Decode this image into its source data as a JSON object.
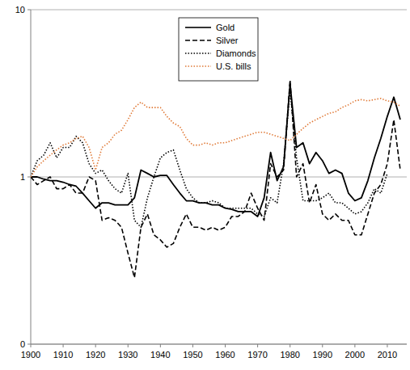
{
  "chart_data": {
    "type": "line",
    "log": "y",
    "grid": true,
    "legend": "top",
    "xlim": [
      1900,
      2016
    ],
    "xticks": [
      1900,
      1910,
      1920,
      1930,
      1940,
      1950,
      1960,
      1970,
      1980,
      1990,
      2000,
      2010
    ],
    "ylim": [
      0.1,
      10
    ],
    "yticks": [
      {
        "value": 0.1,
        "label": "0"
      },
      1,
      10
    ],
    "x": [
      1900,
      1902,
      1904,
      1906,
      1908,
      1910,
      1912,
      1914,
      1916,
      1918,
      1920,
      1922,
      1924,
      1926,
      1928,
      1930,
      1932,
      1934,
      1936,
      1938,
      1940,
      1942,
      1944,
      1946,
      1948,
      1950,
      1952,
      1954,
      1956,
      1958,
      1960,
      1962,
      1964,
      1966,
      1968,
      1970,
      1972,
      1974,
      1976,
      1978,
      1980,
      1982,
      1984,
      1986,
      1988,
      1990,
      1992,
      1994,
      1996,
      1998,
      2000,
      2002,
      2004,
      2006,
      2008,
      2010,
      2012,
      2014
    ],
    "series": [
      {
        "name": "Gold",
        "color": "#000000",
        "line_style": "solid",
        "values": [
          1.0,
          1.0,
          0.97,
          0.95,
          0.95,
          0.93,
          0.9,
          0.88,
          0.8,
          0.72,
          0.65,
          0.7,
          0.7,
          0.68,
          0.68,
          0.68,
          0.75,
          1.1,
          1.05,
          1.0,
          1.02,
          1.02,
          0.9,
          0.8,
          0.72,
          0.72,
          0.7,
          0.7,
          0.68,
          0.68,
          0.65,
          0.64,
          0.62,
          0.62,
          0.62,
          0.58,
          0.75,
          1.4,
          0.95,
          1.15,
          3.6,
          1.5,
          1.6,
          1.2,
          1.4,
          1.25,
          1.05,
          1.1,
          1.05,
          0.8,
          0.72,
          0.75,
          0.95,
          1.3,
          1.7,
          2.3,
          3.0,
          2.2
        ]
      },
      {
        "name": "Silver",
        "color": "#000000",
        "line_style": "dashed",
        "values": [
          1.0,
          0.9,
          0.95,
          1.0,
          0.85,
          0.85,
          0.9,
          0.8,
          0.8,
          1.0,
          0.95,
          0.55,
          0.57,
          0.55,
          0.5,
          0.35,
          0.25,
          0.5,
          0.6,
          0.45,
          0.42,
          0.38,
          0.4,
          0.5,
          0.6,
          0.5,
          0.5,
          0.48,
          0.5,
          0.48,
          0.5,
          0.58,
          0.58,
          0.62,
          0.8,
          0.65,
          0.55,
          1.2,
          1.0,
          1.1,
          3.8,
          1.0,
          1.2,
          0.7,
          0.9,
          0.6,
          0.55,
          0.6,
          0.55,
          0.55,
          0.45,
          0.45,
          0.6,
          0.8,
          0.9,
          1.2,
          2.2,
          1.1
        ]
      },
      {
        "name": "Diamonds",
        "color": "#000000",
        "line_style": "dotted",
        "values": [
          1.0,
          1.25,
          1.35,
          1.6,
          1.3,
          1.5,
          1.5,
          1.75,
          1.6,
          1.2,
          1.05,
          1.1,
          0.95,
          0.85,
          0.8,
          1.05,
          0.55,
          0.5,
          0.75,
          1.0,
          1.3,
          1.4,
          1.45,
          1.1,
          0.85,
          0.75,
          0.7,
          0.7,
          0.72,
          0.7,
          0.65,
          0.65,
          0.65,
          0.65,
          0.65,
          0.6,
          0.58,
          0.75,
          0.7,
          1.2,
          3.3,
          1.3,
          0.72,
          0.72,
          0.72,
          0.75,
          0.8,
          0.7,
          0.7,
          0.65,
          0.6,
          0.62,
          0.7,
          0.85,
          0.8,
          1.05,
          null,
          null
        ]
      },
      {
        "name": "U.S. bills",
        "color": "#e07b39",
        "line_style": "dotted",
        "values": [
          1.0,
          1.15,
          1.25,
          1.35,
          1.45,
          1.55,
          1.6,
          1.7,
          1.75,
          1.5,
          1.1,
          1.5,
          1.6,
          1.8,
          1.9,
          2.2,
          2.6,
          2.8,
          2.6,
          2.6,
          2.6,
          2.3,
          2.1,
          2.0,
          1.7,
          1.55,
          1.55,
          1.6,
          1.55,
          1.6,
          1.6,
          1.65,
          1.7,
          1.75,
          1.8,
          1.85,
          1.85,
          1.8,
          1.75,
          1.7,
          1.65,
          1.8,
          1.95,
          2.1,
          2.2,
          2.3,
          2.4,
          2.45,
          2.6,
          2.7,
          2.85,
          2.9,
          2.85,
          2.9,
          2.95,
          2.85,
          2.8,
          2.65
        ]
      }
    ]
  }
}
